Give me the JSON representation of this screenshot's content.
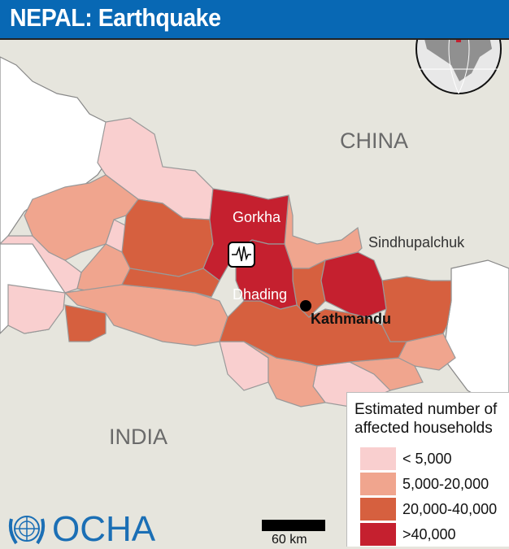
{
  "header": {
    "title": "NEPAL: Earthquake"
  },
  "map_labels": {
    "country_north": "CHINA",
    "country_south": "INDIA",
    "gorkha": "Gorkha",
    "dhading": "Dhading",
    "sindhupalchuk": "Sindhupalchuk",
    "kathmandu": "Kathmandu"
  },
  "epicenter_icon": "seismograph-icon",
  "legend": {
    "title_line1": "Estimated number of",
    "title_line2": "affected households",
    "items": [
      {
        "label": "< 5,000",
        "color": "#f9cfcf"
      },
      {
        "label": "5,000-20,000",
        "color": "#f0a58e"
      },
      {
        "label": "20,000-40,000",
        "color": "#d6603f"
      },
      {
        "label": ">40,000",
        "color": "#c5202f"
      }
    ]
  },
  "scale": {
    "label": "60 km"
  },
  "logo": {
    "text": "OCHA"
  }
}
